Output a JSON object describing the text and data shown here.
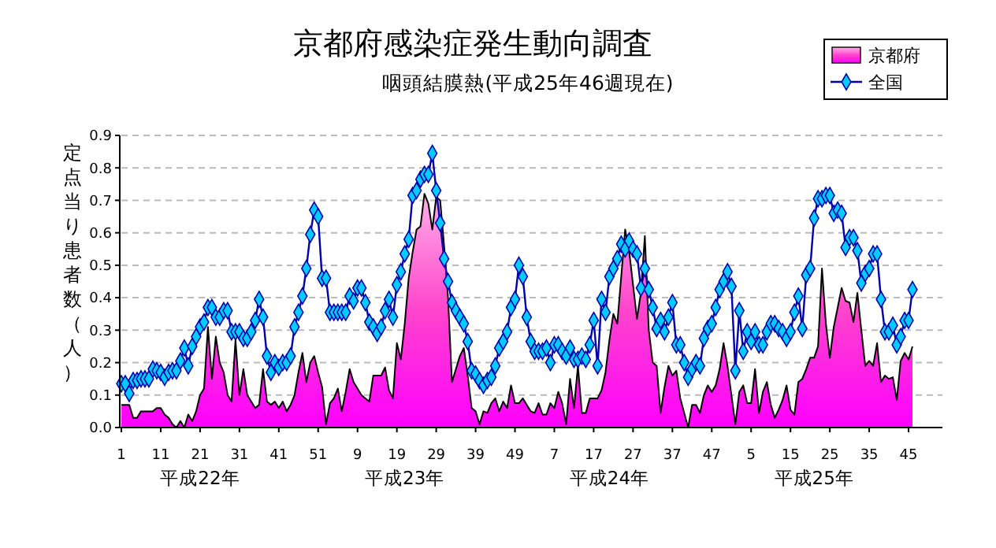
{
  "chart_data": {
    "type": "area",
    "title": "京都府感染症発生動向調査",
    "subtitle": "咽頭結膜熱(平成25年46週現在)",
    "ylabel": "定点当り患者数（人）",
    "categories": [
      "1",
      null,
      null,
      null,
      null,
      null,
      null,
      null,
      null,
      null,
      "11",
      null,
      null,
      null,
      null,
      null,
      null,
      null,
      null,
      null,
      "21",
      null,
      null,
      null,
      null,
      null,
      null,
      null,
      null,
      null,
      "31",
      null,
      null,
      null,
      null,
      null,
      null,
      null,
      null,
      null,
      "41",
      null,
      null,
      null,
      null,
      null,
      null,
      null,
      null,
      null,
      "51",
      null,
      null,
      null,
      null,
      null,
      null,
      null,
      null,
      null,
      "9",
      null,
      null,
      null,
      null,
      null,
      null,
      null,
      null,
      null,
      "19",
      null,
      null,
      null,
      null,
      null,
      null,
      null,
      null,
      null,
      "29",
      null,
      null,
      null,
      null,
      null,
      null,
      null,
      null,
      null,
      "39",
      null,
      null,
      null,
      null,
      null,
      null,
      null,
      null,
      null,
      "49",
      null,
      null,
      null,
      null,
      null,
      null,
      null,
      null,
      null,
      "7",
      null,
      null,
      null,
      null,
      null,
      null,
      null,
      null,
      null,
      "17",
      null,
      null,
      null,
      null,
      null,
      null,
      null,
      null,
      null,
      "27",
      null,
      null,
      null,
      null,
      null,
      null,
      null,
      null,
      null,
      "37",
      null,
      null,
      null,
      null,
      null,
      null,
      null,
      null,
      null,
      "47",
      null,
      null,
      null,
      null,
      null,
      null,
      null,
      null,
      null,
      "5",
      null,
      null,
      null,
      null,
      null,
      null,
      null,
      null,
      null,
      "15",
      null,
      null,
      null,
      null,
      null,
      null,
      null,
      null,
      null,
      "25",
      null,
      null,
      null,
      null,
      null,
      null,
      null,
      null,
      null,
      "35",
      null,
      null,
      null,
      null,
      null,
      null,
      null,
      null,
      null,
      "45",
      null,
      null,
      null,
      null,
      null,
      null,
      null
    ],
    "series": [
      {
        "name": "京都府",
        "color": "#ff44cc",
        "values": [
          0.07,
          0.07,
          0.07,
          0.03,
          0.03,
          0.05,
          0.05,
          0.05,
          0.05,
          0.06,
          0.06,
          0.04,
          0.03,
          0.01,
          0,
          0.02,
          0,
          0.04,
          0.02,
          0.05,
          0.1,
          0.12,
          0.31,
          0.15,
          0.28,
          0.2,
          0.17,
          0.1,
          0.08,
          0.27,
          0.1,
          0.18,
          0.1,
          0.08,
          0.06,
          0.07,
          0.18,
          0.08,
          0.07,
          0.08,
          0.06,
          0.08,
          0.05,
          0.07,
          0.1,
          0.17,
          0.23,
          0.14,
          0.2,
          0.22,
          0.17,
          0.125,
          0.01,
          0.075,
          0.09,
          0.12,
          0.05,
          0.11,
          0.18,
          0.14,
          0.12,
          0.1,
          0.09,
          0.08,
          0.16,
          0.16,
          0.16,
          0.185,
          0.115,
          0.09,
          0.26,
          0.21,
          0.32,
          0.46,
          0.54,
          0.61,
          0.62,
          0.72,
          0.69,
          0.61,
          0.71,
          0.7,
          0.56,
          0.4,
          0.14,
          0.18,
          0.22,
          0.245,
          0.16,
          0.06,
          0.05,
          0.01,
          0.05,
          0.045,
          0.075,
          0.09,
          0.05,
          0.08,
          0.06,
          0.13,
          0.075,
          0.075,
          0.09,
          0.07,
          0.05,
          0.045,
          0.075,
          0.04,
          0.04,
          0.075,
          0.06,
          0.11,
          0.075,
          0.01,
          0.15,
          0.06,
          0.19,
          0.045,
          0.045,
          0.09,
          0.09,
          0.09,
          0.115,
          0.17,
          0.27,
          0.35,
          0.32,
          0.465,
          0.61,
          0.545,
          0.44,
          0.335,
          0.415,
          0.59,
          0.3,
          0.2,
          0.19,
          0.045,
          0.125,
          0.19,
          0.16,
          0.175,
          0.09,
          0.045,
          0,
          0.07,
          0.07,
          0.045,
          0.1,
          0.13,
          0.11,
          0.13,
          0.18,
          0.26,
          0.19,
          0.1,
          0.01,
          0.11,
          0.13,
          0.075,
          0.075,
          0.18,
          0.045,
          0.11,
          0.14,
          0.07,
          0.03,
          0.055,
          0.085,
          0.13,
          0.055,
          0.04,
          0.14,
          0.15,
          0.18,
          0.215,
          0.215,
          0.25,
          0.49,
          0.32,
          0.215,
          0.31,
          0.37,
          0.43,
          0.39,
          0.385,
          0.325,
          0.415,
          0.3,
          0.19,
          0.205,
          0.19,
          0.26,
          0.14,
          0.16,
          0.15,
          0.155,
          0.085,
          0.205,
          0.23,
          0.21,
          0.25,
          null,
          null,
          null,
          null,
          null,
          null
        ]
      },
      {
        "name": "全国",
        "type": "line",
        "marker": "diamond",
        "color": "#0000aa",
        "values": [
          0.135,
          0.135,
          0.105,
          0.145,
          0.145,
          0.15,
          0.15,
          0.15,
          0.18,
          0.175,
          0.17,
          0.155,
          0.17,
          0.175,
          0.175,
          0.205,
          0.245,
          0.19,
          0.25,
          0.28,
          0.31,
          0.325,
          0.37,
          0.37,
          0.34,
          0.34,
          0.36,
          0.36,
          0.295,
          0.295,
          0.295,
          0.275,
          0.275,
          0.295,
          0.33,
          0.395,
          0.34,
          0.22,
          0.17,
          0.2,
          0.185,
          0.2,
          0.2,
          0.22,
          0.31,
          0.355,
          0.405,
          0.49,
          0.595,
          0.67,
          0.65,
          0.46,
          0.46,
          0.355,
          0.355,
          0.355,
          0.355,
          0.355,
          0.405,
          0.39,
          0.43,
          0.43,
          0.385,
          0.325,
          0.31,
          0.29,
          0.31,
          0.36,
          0.395,
          0.34,
          0.44,
          0.48,
          0.535,
          0.58,
          0.715,
          0.73,
          0.765,
          0.78,
          0.78,
          0.845,
          0.73,
          0.63,
          0.52,
          0.45,
          0.385,
          0.36,
          0.34,
          0.32,
          0.265,
          0.175,
          0.165,
          0.145,
          0.13,
          0.145,
          0.155,
          0.19,
          0.245,
          0.265,
          0.295,
          0.37,
          0.395,
          0.5,
          0.465,
          0.34,
          0.265,
          0.235,
          0.235,
          0.235,
          0.245,
          0.2,
          0.255,
          0.255,
          0.235,
          0.22,
          0.245,
          0.21,
          0.21,
          0.22,
          0.21,
          0.255,
          0.33,
          0.19,
          0.395,
          0.355,
          0.465,
          0.49,
          0.52,
          0.565,
          0.55,
          0.575,
          0.55,
          0.535,
          0.43,
          0.49,
          0.425,
          0.37,
          0.305,
          0.33,
          0.295,
          0.34,
          0.385,
          0.255,
          0.255,
          0.2,
          0.155,
          0.18,
          0.2,
          0.19,
          0.275,
          0.305,
          0.32,
          0.37,
          0.425,
          0.45,
          0.48,
          0.435,
          0.175,
          0.36,
          0.235,
          0.295,
          0.265,
          0.295,
          0.255,
          0.255,
          0.295,
          0.32,
          0.32,
          0.305,
          0.295,
          0.275,
          0.295,
          0.355,
          0.405,
          0.305,
          0.47,
          0.49,
          0.645,
          0.705,
          0.705,
          0.715,
          0.715,
          0.66,
          0.67,
          0.66,
          0.555,
          0.585,
          0.585,
          0.545,
          0.445,
          0.475,
          0.49,
          0.535,
          0.535,
          0.395,
          0.295,
          0.295,
          0.315,
          0.255,
          0.28,
          0.33,
          0.33,
          0.425,
          null,
          null,
          null,
          null,
          null,
          null
        ]
      }
    ],
    "ylim": [
      0,
      0.9
    ],
    "yticks": [
      {
        "value": 0,
        "label": "0.0"
      },
      0.1,
      0.2,
      0.3,
      0.4,
      0.5,
      0.6,
      0.7,
      0.8,
      0.9
    ],
    "grid": "y",
    "legend": "top right",
    "line_style": "solid",
    "annotations": [
      "平成22年",
      "平成23年",
      "平成24年",
      "平成25年"
    ]
  }
}
